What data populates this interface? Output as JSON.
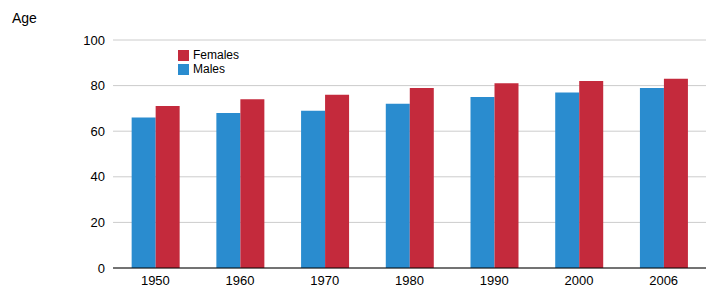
{
  "chart_data": {
    "type": "bar",
    "y_label": "Age",
    "categories": [
      "1950",
      "1960",
      "1970",
      "1980",
      "1990",
      "2000",
      "2006"
    ],
    "series": [
      {
        "name": "Males",
        "color": "#2a8ccf",
        "values": [
          66,
          68,
          69,
          72,
          75,
          77,
          79
        ]
      },
      {
        "name": "Females",
        "color": "#c42a3c",
        "values": [
          71,
          74,
          76,
          79,
          81,
          82,
          83
        ]
      }
    ],
    "ylim": [
      0,
      100
    ],
    "yticks": [
      0,
      20,
      40,
      60,
      80,
      100
    ],
    "grid": true,
    "legend": "upper left"
  }
}
